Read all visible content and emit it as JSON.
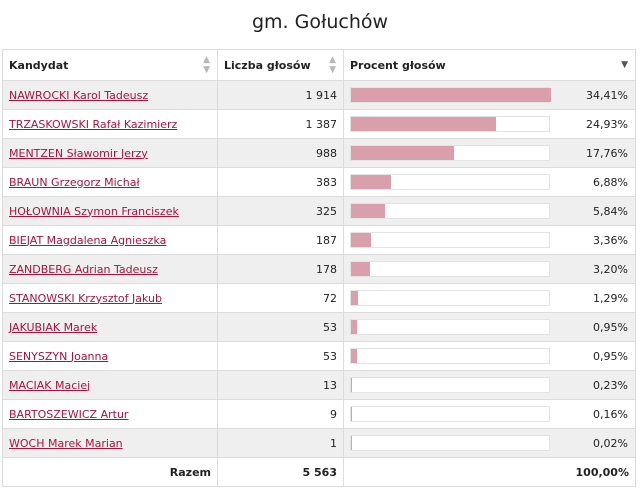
{
  "title": "gm. Gołuchów",
  "columns": {
    "candidate": "Kandydat",
    "votes": "Liczba głosów",
    "percent": "Procent głosów"
  },
  "sort": {
    "candidate": "sort-both-icon",
    "votes": "sort-both-icon",
    "percent": "sort-desc-icon"
  },
  "bar_color": "#d9a0ac",
  "link_color": "#a4143c",
  "rows": [
    {
      "name": "NAWROCKI Karol Tadeusz",
      "votes": "1 914",
      "percent": "34,41%",
      "share": 34.41
    },
    {
      "name": "TRZASKOWSKI Rafał Kazimierz",
      "votes": "1 387",
      "percent": "24,93%",
      "share": 24.93
    },
    {
      "name": "MENTZEN Sławomir Jerzy",
      "votes": "988",
      "percent": "17,76%",
      "share": 17.76
    },
    {
      "name": "BRAUN Grzegorz Michał",
      "votes": "383",
      "percent": "6,88%",
      "share": 6.88
    },
    {
      "name": "HOŁOWNIA Szymon Franciszek",
      "votes": "325",
      "percent": "5,84%",
      "share": 5.84
    },
    {
      "name": "BIEJAT Magdalena Agnieszka",
      "votes": "187",
      "percent": "3,36%",
      "share": 3.36
    },
    {
      "name": "ZANDBERG Adrian Tadeusz",
      "votes": "178",
      "percent": "3,20%",
      "share": 3.2
    },
    {
      "name": "STANOWSKI Krzysztof Jakub",
      "votes": "72",
      "percent": "1,29%",
      "share": 1.29
    },
    {
      "name": "JAKUBIAK Marek",
      "votes": "53",
      "percent": "0,95%",
      "share": 0.95
    },
    {
      "name": "SENYSZYN Joanna",
      "votes": "53",
      "percent": "0,95%",
      "share": 0.95
    },
    {
      "name": "MACIAK Maciej",
      "votes": "13",
      "percent": "0,23%",
      "share": 0.23
    },
    {
      "name": "BARTOSZEWICZ Artur",
      "votes": "9",
      "percent": "0,16%",
      "share": 0.16
    },
    {
      "name": "WOCH Marek Marian",
      "votes": "1",
      "percent": "0,02%",
      "share": 0.02
    }
  ],
  "total": {
    "label": "Razem",
    "votes": "5 563",
    "percent": "100,00%"
  }
}
